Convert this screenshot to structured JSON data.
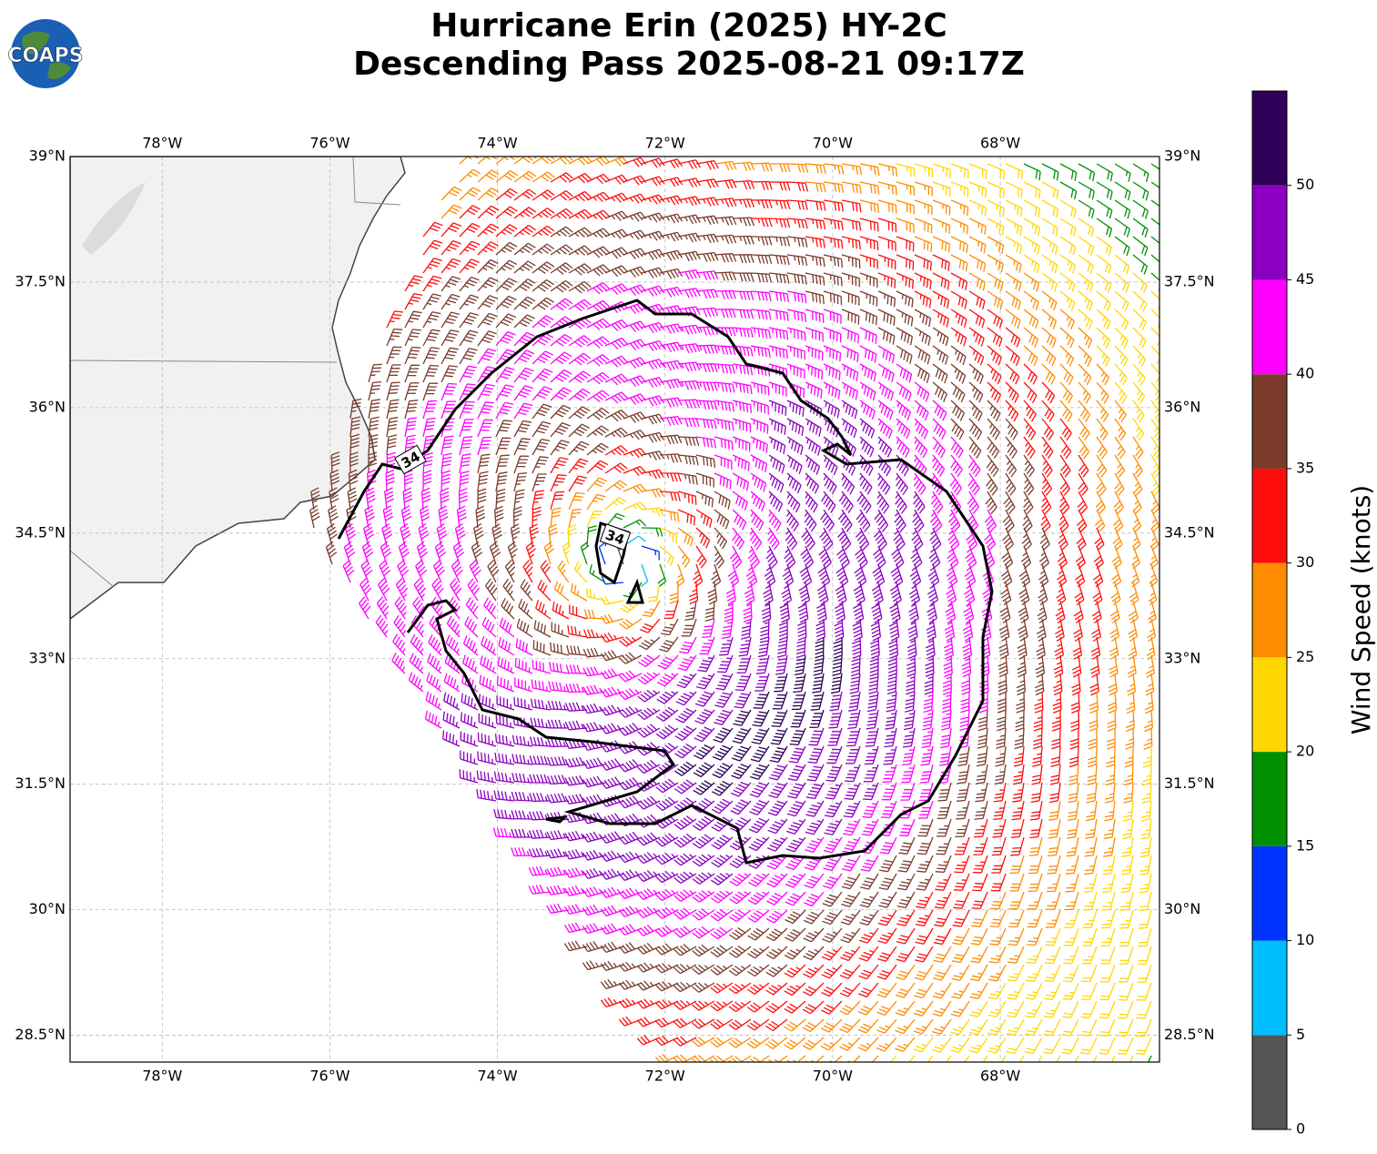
{
  "logo": {
    "text": "COAPS"
  },
  "chart_data": {
    "type": "map",
    "title": [
      "Hurricane Erin (2025) HY-2C",
      "Descending Pass 2025-08-21 09:17Z"
    ],
    "xlim": [
      -79.1,
      -66.1
    ],
    "ylim": [
      28.18,
      39
    ],
    "xticks": [
      {
        "value": -78,
        "label": "78°W"
      },
      {
        "value": -76,
        "label": "76°W"
      },
      {
        "value": -74,
        "label": "74°W"
      },
      {
        "value": -72,
        "label": "72°W"
      },
      {
        "value": -70,
        "label": "70°W"
      },
      {
        "value": -68,
        "label": "68°W"
      }
    ],
    "yticks": [
      {
        "value": 39,
        "label": "39°N"
      },
      {
        "value": 37.5,
        "label": "37.5°N"
      },
      {
        "value": 36,
        "label": "36°N"
      },
      {
        "value": 34.5,
        "label": "34.5°N"
      },
      {
        "value": 33,
        "label": "33°N"
      },
      {
        "value": 31.5,
        "label": "31.5°N"
      },
      {
        "value": 30,
        "label": "30°N"
      },
      {
        "value": 28.5,
        "label": "28.5°N"
      }
    ],
    "grid": true,
    "contour_labels": [
      "34",
      "34"
    ],
    "colorbar": {
      "label": "Wind Speed (knots)",
      "bins": [
        0,
        5,
        10,
        15,
        20,
        25,
        30,
        35,
        40,
        45,
        50,
        55
      ],
      "colors": [
        "#555555",
        "#00bfff",
        "#0033ff",
        "#009000",
        "#ffd700",
        "#ff8c00",
        "#ff0d0d",
        "#7a3b2a",
        "#ff00ff",
        "#8b00c0",
        "#2e0057"
      ],
      "ticks": [
        0,
        5,
        10,
        15,
        20,
        25,
        30,
        35,
        40,
        45,
        50
      ]
    }
  }
}
